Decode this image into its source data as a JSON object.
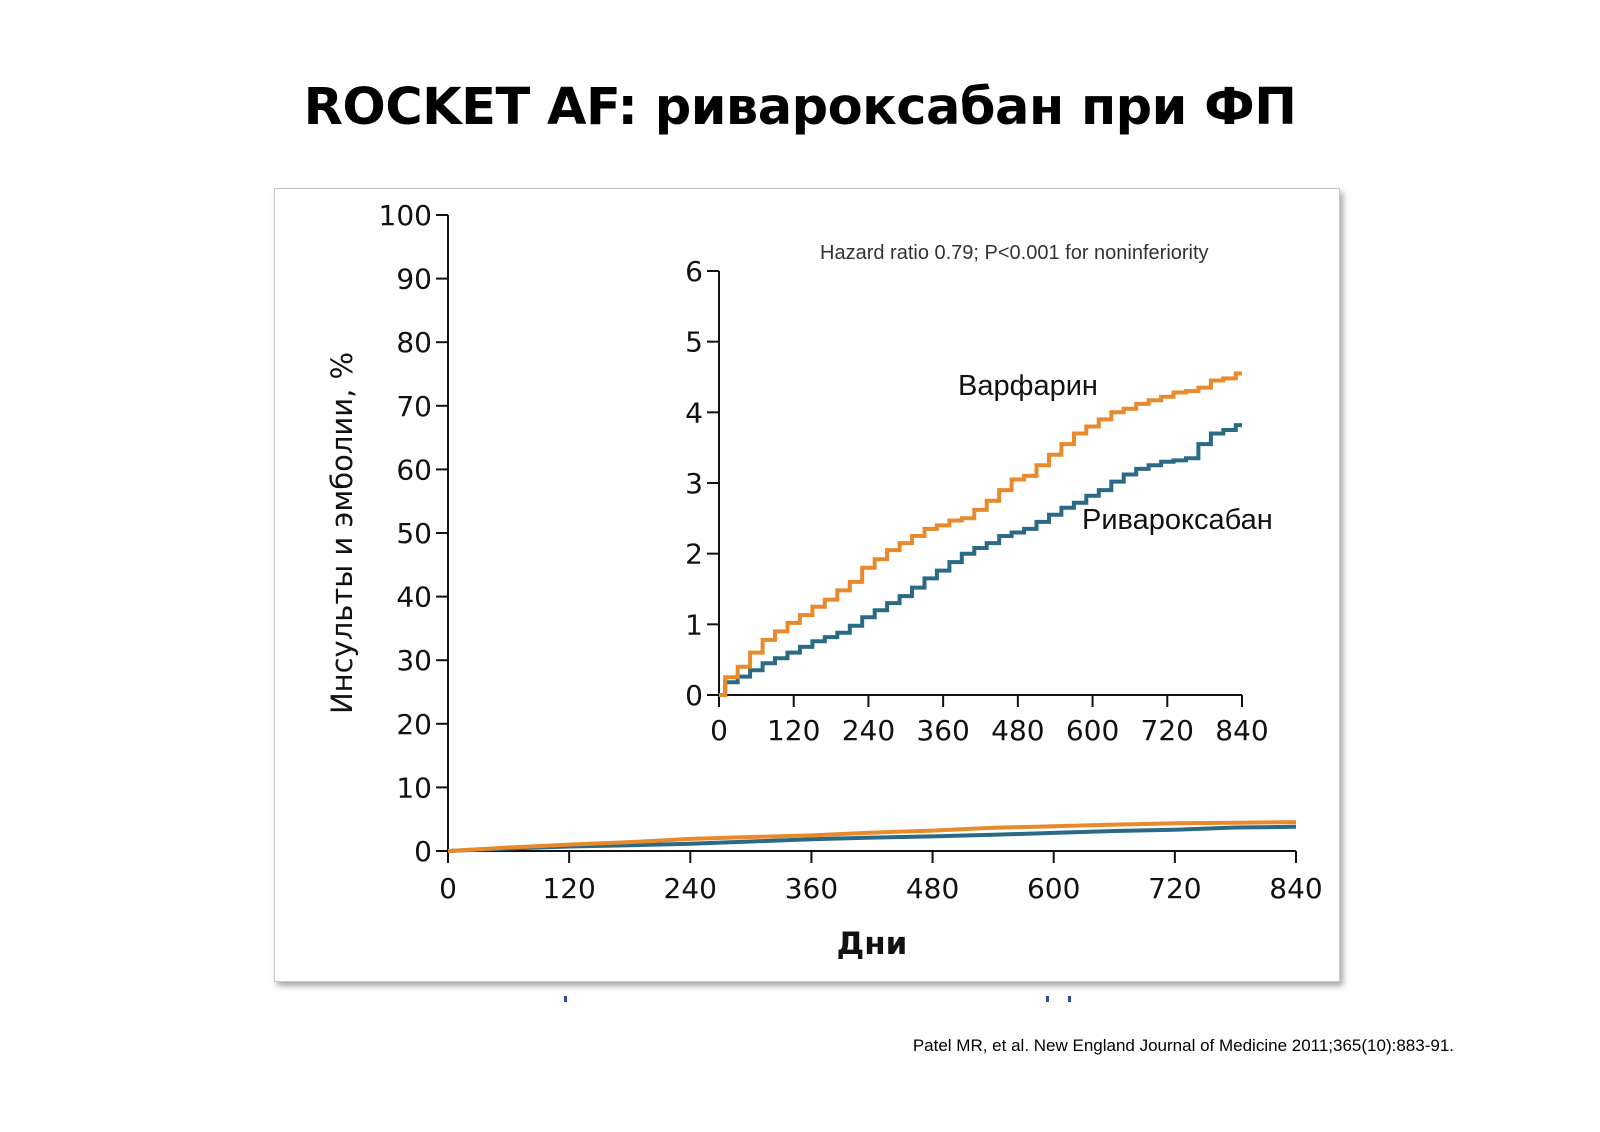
{
  "slide": {
    "title": "ROCKET AF: ривароксабан при ФП",
    "citation": "Patel MR, et al. New England Journal of Medicine 2011;365(10):883-91."
  },
  "colors": {
    "warfarin": "#E8892B",
    "rivaroxaban": "#2A6A84",
    "axis": "#111111",
    "accent_blue": "#2F4A9E"
  },
  "chart_data": [
    {
      "id": "main",
      "type": "line",
      "ylabel": "Инсульты и эмболии, %",
      "xlabel": "Дни",
      "xlim": [
        0,
        840
      ],
      "ylim": [
        0,
        100
      ],
      "xticks": [
        0,
        120,
        240,
        360,
        480,
        600,
        720,
        840
      ],
      "yticks": [
        0,
        10,
        20,
        30,
        40,
        50,
        60,
        70,
        80,
        90,
        100
      ],
      "series": [
        {
          "key": "warfarin",
          "x": [
            0,
            60,
            120,
            180,
            240,
            300,
            360,
            420,
            480,
            540,
            600,
            660,
            720,
            780,
            840
          ],
          "values": [
            0,
            0.55,
            1.0,
            1.4,
            1.9,
            2.2,
            2.45,
            2.9,
            3.2,
            3.65,
            3.9,
            4.15,
            4.35,
            4.45,
            4.55
          ]
        },
        {
          "key": "rivaroxaban",
          "x": [
            0,
            60,
            120,
            180,
            240,
            300,
            360,
            420,
            480,
            540,
            600,
            660,
            720,
            780,
            840
          ],
          "values": [
            0,
            0.4,
            0.7,
            0.9,
            1.15,
            1.5,
            1.85,
            2.1,
            2.3,
            2.55,
            2.85,
            3.15,
            3.35,
            3.7,
            3.8
          ]
        }
      ]
    },
    {
      "id": "inset",
      "type": "line",
      "annotation": "Hazard ratio 0.79; P<0.001 for noninferiority",
      "xlim": [
        0,
        840
      ],
      "ylim": [
        0,
        6
      ],
      "xticks": [
        0,
        120,
        240,
        360,
        480,
        600,
        720,
        840
      ],
      "yticks": [
        0,
        1,
        2,
        3,
        4,
        5,
        6
      ],
      "series": [
        {
          "key": "warfarin",
          "name": "Варфарин",
          "x": [
            0,
            20,
            40,
            60,
            80,
            100,
            120,
            140,
            160,
            180,
            200,
            220,
            240,
            260,
            280,
            300,
            320,
            340,
            360,
            380,
            400,
            420,
            440,
            460,
            480,
            500,
            520,
            540,
            560,
            580,
            600,
            620,
            640,
            660,
            680,
            700,
            720,
            740,
            760,
            780,
            800,
            820,
            840
          ],
          "values": [
            0,
            0.25,
            0.4,
            0.6,
            0.78,
            0.9,
            1.02,
            1.13,
            1.25,
            1.35,
            1.48,
            1.6,
            1.8,
            1.92,
            2.05,
            2.15,
            2.25,
            2.35,
            2.4,
            2.47,
            2.5,
            2.62,
            2.75,
            2.9,
            3.05,
            3.1,
            3.25,
            3.4,
            3.55,
            3.7,
            3.8,
            3.9,
            4.0,
            4.05,
            4.12,
            4.17,
            4.22,
            4.28,
            4.3,
            4.35,
            4.45,
            4.48,
            4.55
          ]
        },
        {
          "key": "rivaroxaban",
          "name": "Ривароксабан",
          "x": [
            0,
            20,
            40,
            60,
            80,
            100,
            120,
            140,
            160,
            180,
            200,
            220,
            240,
            260,
            280,
            300,
            320,
            340,
            360,
            380,
            400,
            420,
            440,
            460,
            480,
            500,
            520,
            540,
            560,
            580,
            600,
            620,
            640,
            660,
            680,
            700,
            720,
            740,
            760,
            780,
            800,
            820,
            840
          ],
          "values": [
            0,
            0.18,
            0.26,
            0.35,
            0.45,
            0.52,
            0.6,
            0.68,
            0.76,
            0.82,
            0.88,
            0.98,
            1.1,
            1.2,
            1.3,
            1.4,
            1.52,
            1.65,
            1.76,
            1.88,
            2.0,
            2.08,
            2.15,
            2.25,
            2.3,
            2.35,
            2.45,
            2.55,
            2.65,
            2.72,
            2.82,
            2.9,
            3.02,
            3.12,
            3.2,
            3.25,
            3.3,
            3.32,
            3.35,
            3.55,
            3.7,
            3.75,
            3.82
          ]
        }
      ]
    }
  ]
}
